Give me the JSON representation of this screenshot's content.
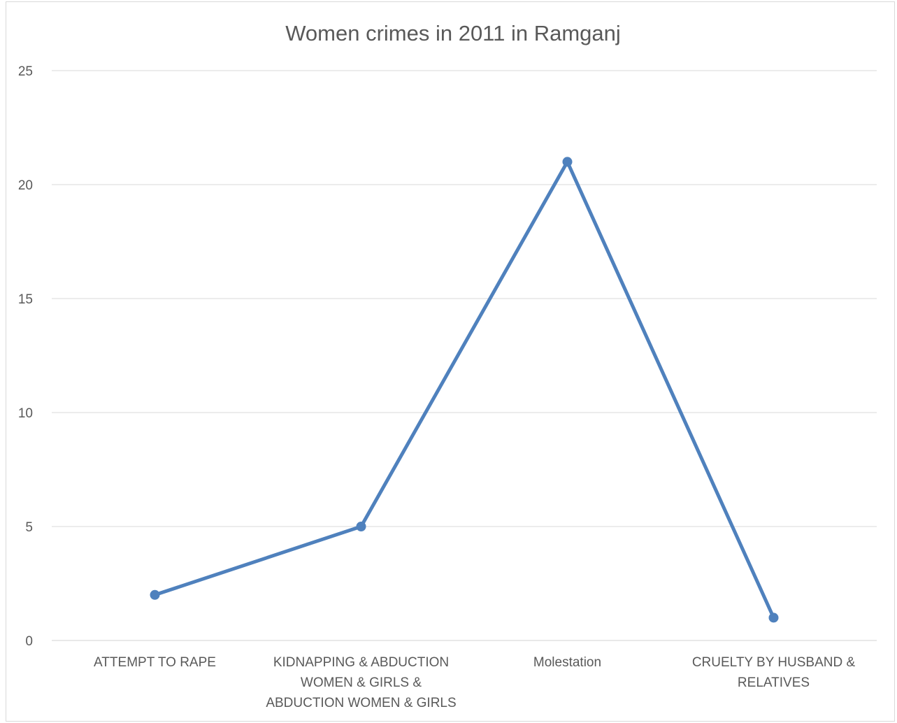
{
  "chart_data": {
    "type": "line",
    "title": "Women crimes in 2011 in Ramganj",
    "categories": [
      [
        "ATTEMPT TO RAPE"
      ],
      [
        "KIDNAPPING & ABDUCTION",
        "WOMEN & GIRLS &",
        "ABDUCTION WOMEN & GIRLS"
      ],
      [
        "Molestation"
      ],
      [
        "CRUELTY BY HUSBAND &",
        "RELATIVES"
      ]
    ],
    "series": [
      {
        "values": [
          2,
          5,
          21,
          1
        ],
        "color": "#4f81bd"
      }
    ],
    "ylim": [
      0,
      25
    ],
    "yticks": [
      0,
      5,
      10,
      15,
      20,
      25
    ],
    "grid": true,
    "legend": "none"
  }
}
